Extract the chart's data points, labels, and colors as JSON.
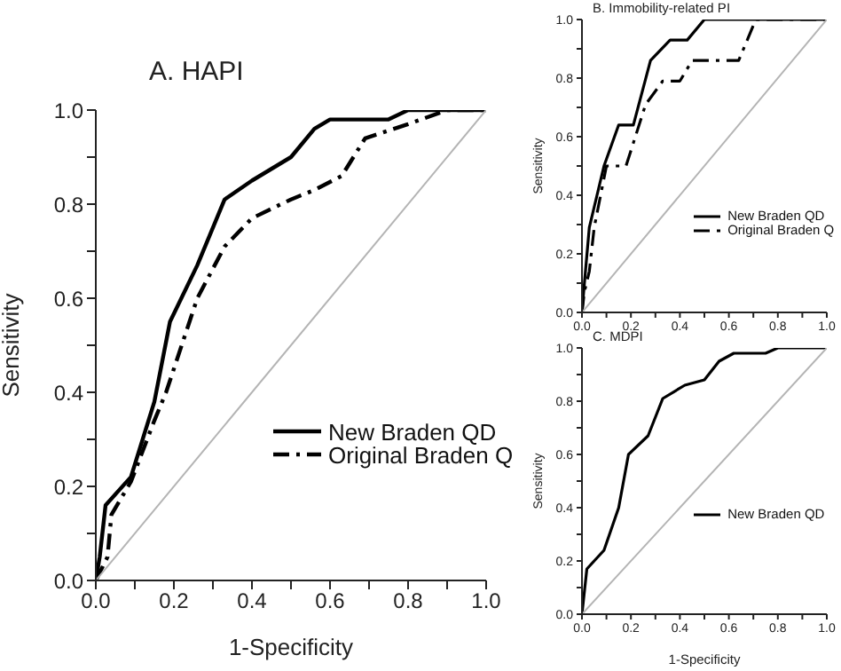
{
  "chart_data": [
    {
      "type": "line",
      "title": "A. HAPI",
      "xlabel": "1-Specificity",
      "ylabel": "Sensitivity",
      "xlim": [
        0,
        1
      ],
      "ylim": [
        0,
        1
      ],
      "xticks": [
        {
          "value": 0,
          "label": "0.0"
        },
        {
          "value": 0.1,
          "label": null
        },
        {
          "value": 0.2,
          "label": "0.2"
        },
        {
          "value": 0.3,
          "label": null
        },
        {
          "value": 0.4,
          "label": "0.4"
        },
        {
          "value": 0.5,
          "label": null
        },
        {
          "value": 0.6,
          "label": "0.6"
        },
        {
          "value": 0.7,
          "label": null
        },
        {
          "value": 0.8,
          "label": "0.8"
        },
        {
          "value": 0.9,
          "label": null
        },
        {
          "value": 1,
          "label": "1.0"
        }
      ],
      "yticks": [
        {
          "value": 0,
          "label": "0.0"
        },
        {
          "value": 0.1,
          "label": null
        },
        {
          "value": 0.2,
          "label": "0.2"
        },
        {
          "value": 0.3,
          "label": null
        },
        {
          "value": 0.4,
          "label": "0.4"
        },
        {
          "value": 0.5,
          "label": null
        },
        {
          "value": 0.6,
          "label": "0.6"
        },
        {
          "value": 0.7,
          "label": null
        },
        {
          "value": 0.8,
          "label": "0.8"
        },
        {
          "value": 0.9,
          "label": null
        },
        {
          "value": 1,
          "label": "1.0"
        }
      ],
      "legend": "right",
      "marker": "none",
      "grid": false,
      "series": [
        {
          "name": "New Braden QD",
          "color": "#000000",
          "line_style": "solid",
          "x": [
            0,
            0.01,
            0.025,
            0.09,
            0.15,
            0.19,
            0.26,
            0.33,
            0.4,
            0.5,
            0.56,
            0.6,
            0.75,
            0.8,
            1
          ],
          "values": [
            0,
            0.05,
            0.16,
            0.22,
            0.38,
            0.55,
            0.67,
            0.81,
            0.85,
            0.9,
            0.96,
            0.98,
            0.98,
            1,
            1
          ]
        },
        {
          "name": "Original Braden Q",
          "color": "#000000",
          "line_style": "dashed",
          "x": [
            0,
            0.03,
            0.04,
            0.09,
            0.15,
            0.18,
            0.24,
            0.26,
            0.33,
            0.4,
            0.5,
            0.56,
            0.63,
            0.69,
            0.8,
            0.9,
            1
          ],
          "values": [
            0,
            0.05,
            0.14,
            0.21,
            0.34,
            0.4,
            0.55,
            0.6,
            0.71,
            0.77,
            0.81,
            0.83,
            0.86,
            0.94,
            0.97,
            1,
            1
          ]
        },
        {
          "color": "#b4b4b4",
          "line_style": "solid",
          "x": [
            0,
            1
          ],
          "values": [
            0,
            1
          ]
        }
      ]
    },
    {
      "type": "line",
      "title": "B. Immobility-related PI",
      "ylabel": "Sensitivity",
      "xlim": [
        0,
        1
      ],
      "ylim": [
        0,
        1
      ],
      "xticks": [
        {
          "value": 0,
          "label": "0.0"
        },
        {
          "value": 0.1,
          "label": null
        },
        {
          "value": 0.2,
          "label": "0.2"
        },
        {
          "value": 0.3,
          "label": null
        },
        {
          "value": 0.4,
          "label": "0.4"
        },
        {
          "value": 0.5,
          "label": null
        },
        {
          "value": 0.6,
          "label": "0.6"
        },
        {
          "value": 0.7,
          "label": null
        },
        {
          "value": 0.8,
          "label": "0.8"
        },
        {
          "value": 0.9,
          "label": null
        },
        {
          "value": 1,
          "label": "1.0"
        }
      ],
      "yticks": [
        {
          "value": 0,
          "label": "0.0"
        },
        {
          "value": 0.1,
          "label": null
        },
        {
          "value": 0.2,
          "label": "0.2"
        },
        {
          "value": 0.3,
          "label": null
        },
        {
          "value": 0.4,
          "label": "0.4"
        },
        {
          "value": 0.5,
          "label": null
        },
        {
          "value": 0.6,
          "label": "0.6"
        },
        {
          "value": 0.7,
          "label": null
        },
        {
          "value": 0.8,
          "label": "0.8"
        },
        {
          "value": 0.9,
          "label": null
        },
        {
          "value": 1,
          "label": "1.0"
        }
      ],
      "legend": "bottom right",
      "marker": "none",
      "grid": false,
      "series": [
        {
          "name": "New Braden QD",
          "color": "#000000",
          "line_style": "solid",
          "x": [
            0,
            0.01,
            0.03,
            0.09,
            0.15,
            0.21,
            0.28,
            0.36,
            0.43,
            0.5,
            1
          ],
          "values": [
            0,
            0.1,
            0.29,
            0.5,
            0.64,
            0.64,
            0.86,
            0.93,
            0.93,
            1,
            1
          ]
        },
        {
          "name": "Original Braden Q",
          "color": "#000000",
          "line_style": "dashed",
          "x": [
            0,
            0.01,
            0.03,
            0.05,
            0.1,
            0.18,
            0.26,
            0.33,
            0.4,
            0.45,
            0.64,
            0.71,
            1
          ],
          "values": [
            0,
            0.07,
            0.14,
            0.29,
            0.5,
            0.5,
            0.71,
            0.79,
            0.79,
            0.86,
            0.86,
            1,
            1
          ]
        },
        {
          "color": "#b4b4b4",
          "line_style": "solid",
          "x": [
            0,
            1
          ],
          "values": [
            0,
            1
          ]
        }
      ]
    },
    {
      "type": "line",
      "title": "C. MDPI",
      "xlabel": "1-Specificity",
      "ylabel": "Sensitivity",
      "xlim": [
        0,
        1
      ],
      "ylim": [
        0,
        1
      ],
      "xticks": [
        {
          "value": 0,
          "label": "0.0"
        },
        {
          "value": 0.1,
          "label": null
        },
        {
          "value": 0.2,
          "label": "0.2"
        },
        {
          "value": 0.3,
          "label": null
        },
        {
          "value": 0.4,
          "label": "0.4"
        },
        {
          "value": 0.5,
          "label": null
        },
        {
          "value": 0.6,
          "label": "0.6"
        },
        {
          "value": 0.7,
          "label": null
        },
        {
          "value": 0.8,
          "label": "0.8"
        },
        {
          "value": 0.9,
          "label": null
        },
        {
          "value": 1,
          "label": "1.0"
        }
      ],
      "yticks": [
        {
          "value": 0,
          "label": "0.0"
        },
        {
          "value": 0.1,
          "label": null
        },
        {
          "value": 0.2,
          "label": "0.2"
        },
        {
          "value": 0.3,
          "label": null
        },
        {
          "value": 0.4,
          "label": "0.4"
        },
        {
          "value": 0.5,
          "label": null
        },
        {
          "value": 0.6,
          "label": "0.6"
        },
        {
          "value": 0.7,
          "label": null
        },
        {
          "value": 0.8,
          "label": "0.8"
        },
        {
          "value": 0.9,
          "label": null
        },
        {
          "value": 1,
          "label": "1.0"
        }
      ],
      "legend": "right",
      "marker": "none",
      "grid": false,
      "series": [
        {
          "name": "New Braden QD",
          "color": "#000000",
          "line_style": "solid",
          "x": [
            0,
            0.02,
            0.09,
            0.15,
            0.19,
            0.27,
            0.33,
            0.42,
            0.5,
            0.56,
            0.62,
            0.75,
            0.8,
            1
          ],
          "values": [
            0,
            0.17,
            0.24,
            0.4,
            0.6,
            0.67,
            0.81,
            0.86,
            0.88,
            0.95,
            0.98,
            0.98,
            1,
            1
          ]
        },
        {
          "color": "#b4b4b4",
          "line_style": "solid",
          "x": [
            0,
            1
          ],
          "values": [
            0,
            1
          ]
        }
      ]
    }
  ]
}
